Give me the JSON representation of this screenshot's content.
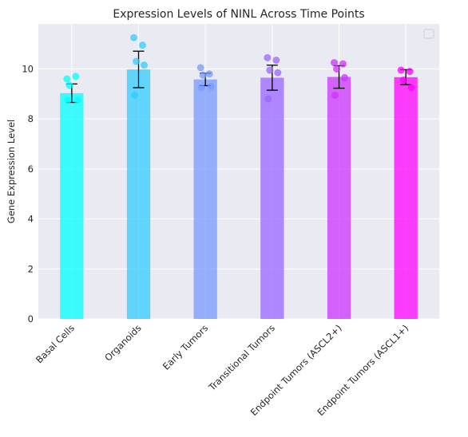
{
  "chart_data": {
    "type": "bar",
    "title": "Expression Levels of NINL Across Time Points",
    "xlabel": "",
    "ylabel": "Gene Expression Level",
    "ylim": [
      0,
      11.8
    ],
    "yticks": [
      0,
      2,
      4,
      6,
      8,
      10
    ],
    "grid": true,
    "legend": "top-right (empty)",
    "categories": [
      "Basal Cells",
      "Organoids",
      "Early Tumors",
      "Transitional Tumors",
      "Endpoint Tumors (ASCL2+)",
      "Endpoint Tumors (ASCL1+)"
    ],
    "values": [
      9.03,
      9.98,
      9.58,
      9.65,
      9.68,
      9.67
    ],
    "error": [
      0.37,
      0.73,
      0.25,
      0.5,
      0.45,
      0.3
    ],
    "colors": [
      "#00ffff",
      "#33ccff",
      "#7799ff",
      "#9966ff",
      "#cc33ff",
      "#ff00ff"
    ],
    "points": [
      [
        9.6,
        9.7,
        9.35,
        8.75,
        8.75
      ],
      [
        11.25,
        10.95,
        10.3,
        10.15,
        8.95
      ],
      [
        10.05,
        9.8,
        9.75,
        9.3,
        9.25
      ],
      [
        10.45,
        10.35,
        9.95,
        9.85,
        8.8
      ],
      [
        10.25,
        10.2,
        10.0,
        9.65,
        8.95
      ],
      [
        9.95,
        9.9,
        9.55,
        9.25
      ]
    ]
  }
}
